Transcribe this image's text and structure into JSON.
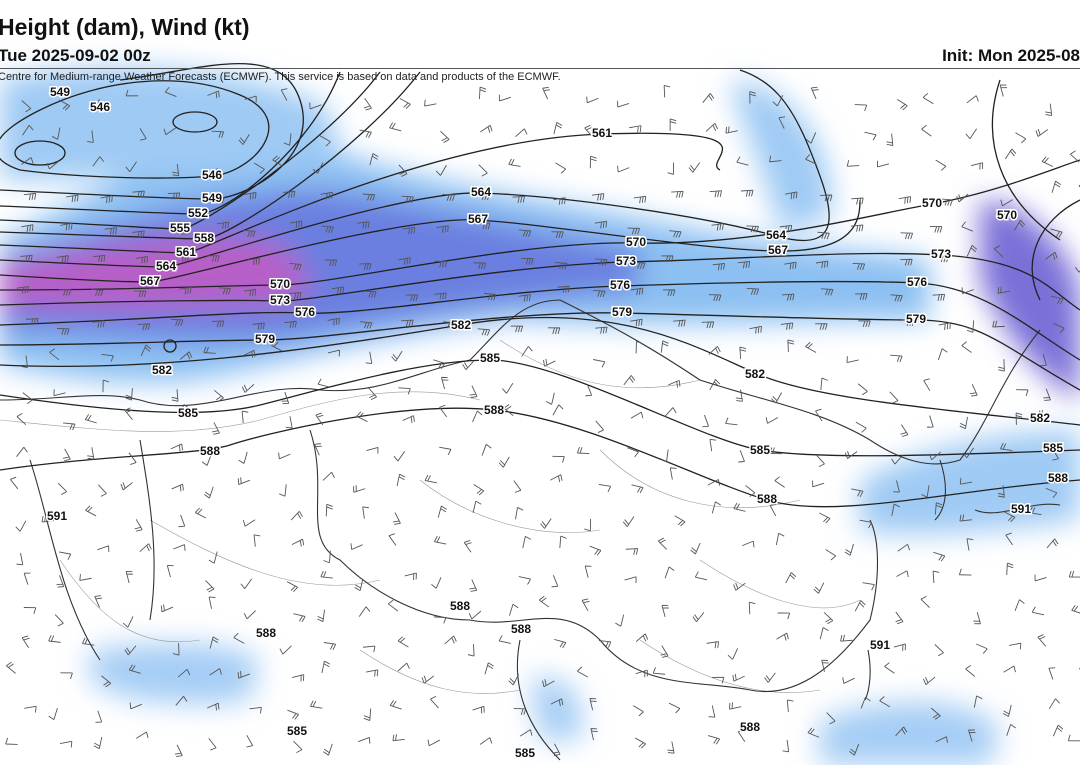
{
  "header": {
    "title": "Height (dam), Wind (kt)",
    "valid": "Tue 2025-09-02 00z",
    "init": "Init: Mon 2025-08"
  },
  "credit": "Centre for Medium-range Weather Forecasts (ECMWF). This service is based on data and products of the ECMWF.",
  "contour_labels": [
    549,
    546,
    546,
    549,
    552,
    555,
    558,
    561,
    564,
    567,
    570,
    573,
    576,
    579,
    582,
    585,
    588,
    591,
    561,
    564,
    567,
    570,
    573,
    576,
    579,
    582,
    585,
    588,
    564,
    567,
    570,
    570,
    573,
    576,
    579,
    582,
    585,
    588,
    582,
    585,
    588,
    591,
    591,
    588,
    588,
    588,
    585,
    585,
    588
  ]
}
